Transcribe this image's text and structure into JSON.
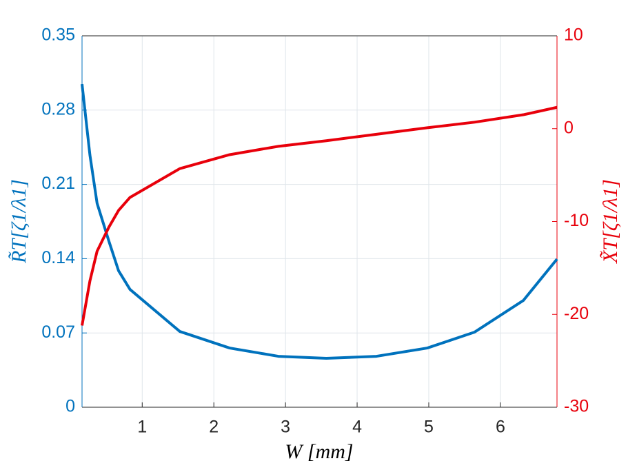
{
  "chart_data": {
    "type": "line",
    "x_label": "W [mm]",
    "y_label": "R̃T[ζ1/λ1]",
    "y2_label": "X̃T[ζ1/λ1]",
    "x": [
      0.16,
      0.27,
      0.37,
      0.535,
      0.67,
      0.83,
      1.525,
      2.22,
      2.9,
      3.57,
      4.27,
      4.98,
      5.64,
      6.32,
      6.79
    ],
    "series": [
      {
        "name": "R",
        "color": "#0072bd",
        "values": [
          0.3045,
          0.2377,
          0.1922,
          0.1565,
          0.1286,
          0.111,
          0.0714,
          0.0558,
          0.048,
          0.0461,
          0.048,
          0.0558,
          0.0708,
          0.1006,
          0.1396
        ]
      },
      {
        "name": "X",
        "color": "#e8000b",
        "axis": "y2",
        "values": [
          -21.2,
          -16.4,
          -13.2,
          -10.6,
          -8.8,
          -7.4,
          -4.3,
          -2.8,
          -1.9,
          -1.3,
          -0.6,
          0.1,
          0.7,
          1.5,
          2.3
        ]
      }
    ],
    "xlim": [
      0.16,
      6.79
    ],
    "xticks": [
      1,
      2,
      3,
      4,
      5,
      6
    ],
    "ylim": [
      0,
      0.35
    ],
    "yticks": [
      0,
      0.07,
      0.14,
      0.21,
      0.28,
      0.35
    ],
    "y2lim": [
      -30,
      10
    ],
    "y2ticks": [
      -30,
      -20,
      -10,
      0,
      10
    ],
    "grid": true
  }
}
